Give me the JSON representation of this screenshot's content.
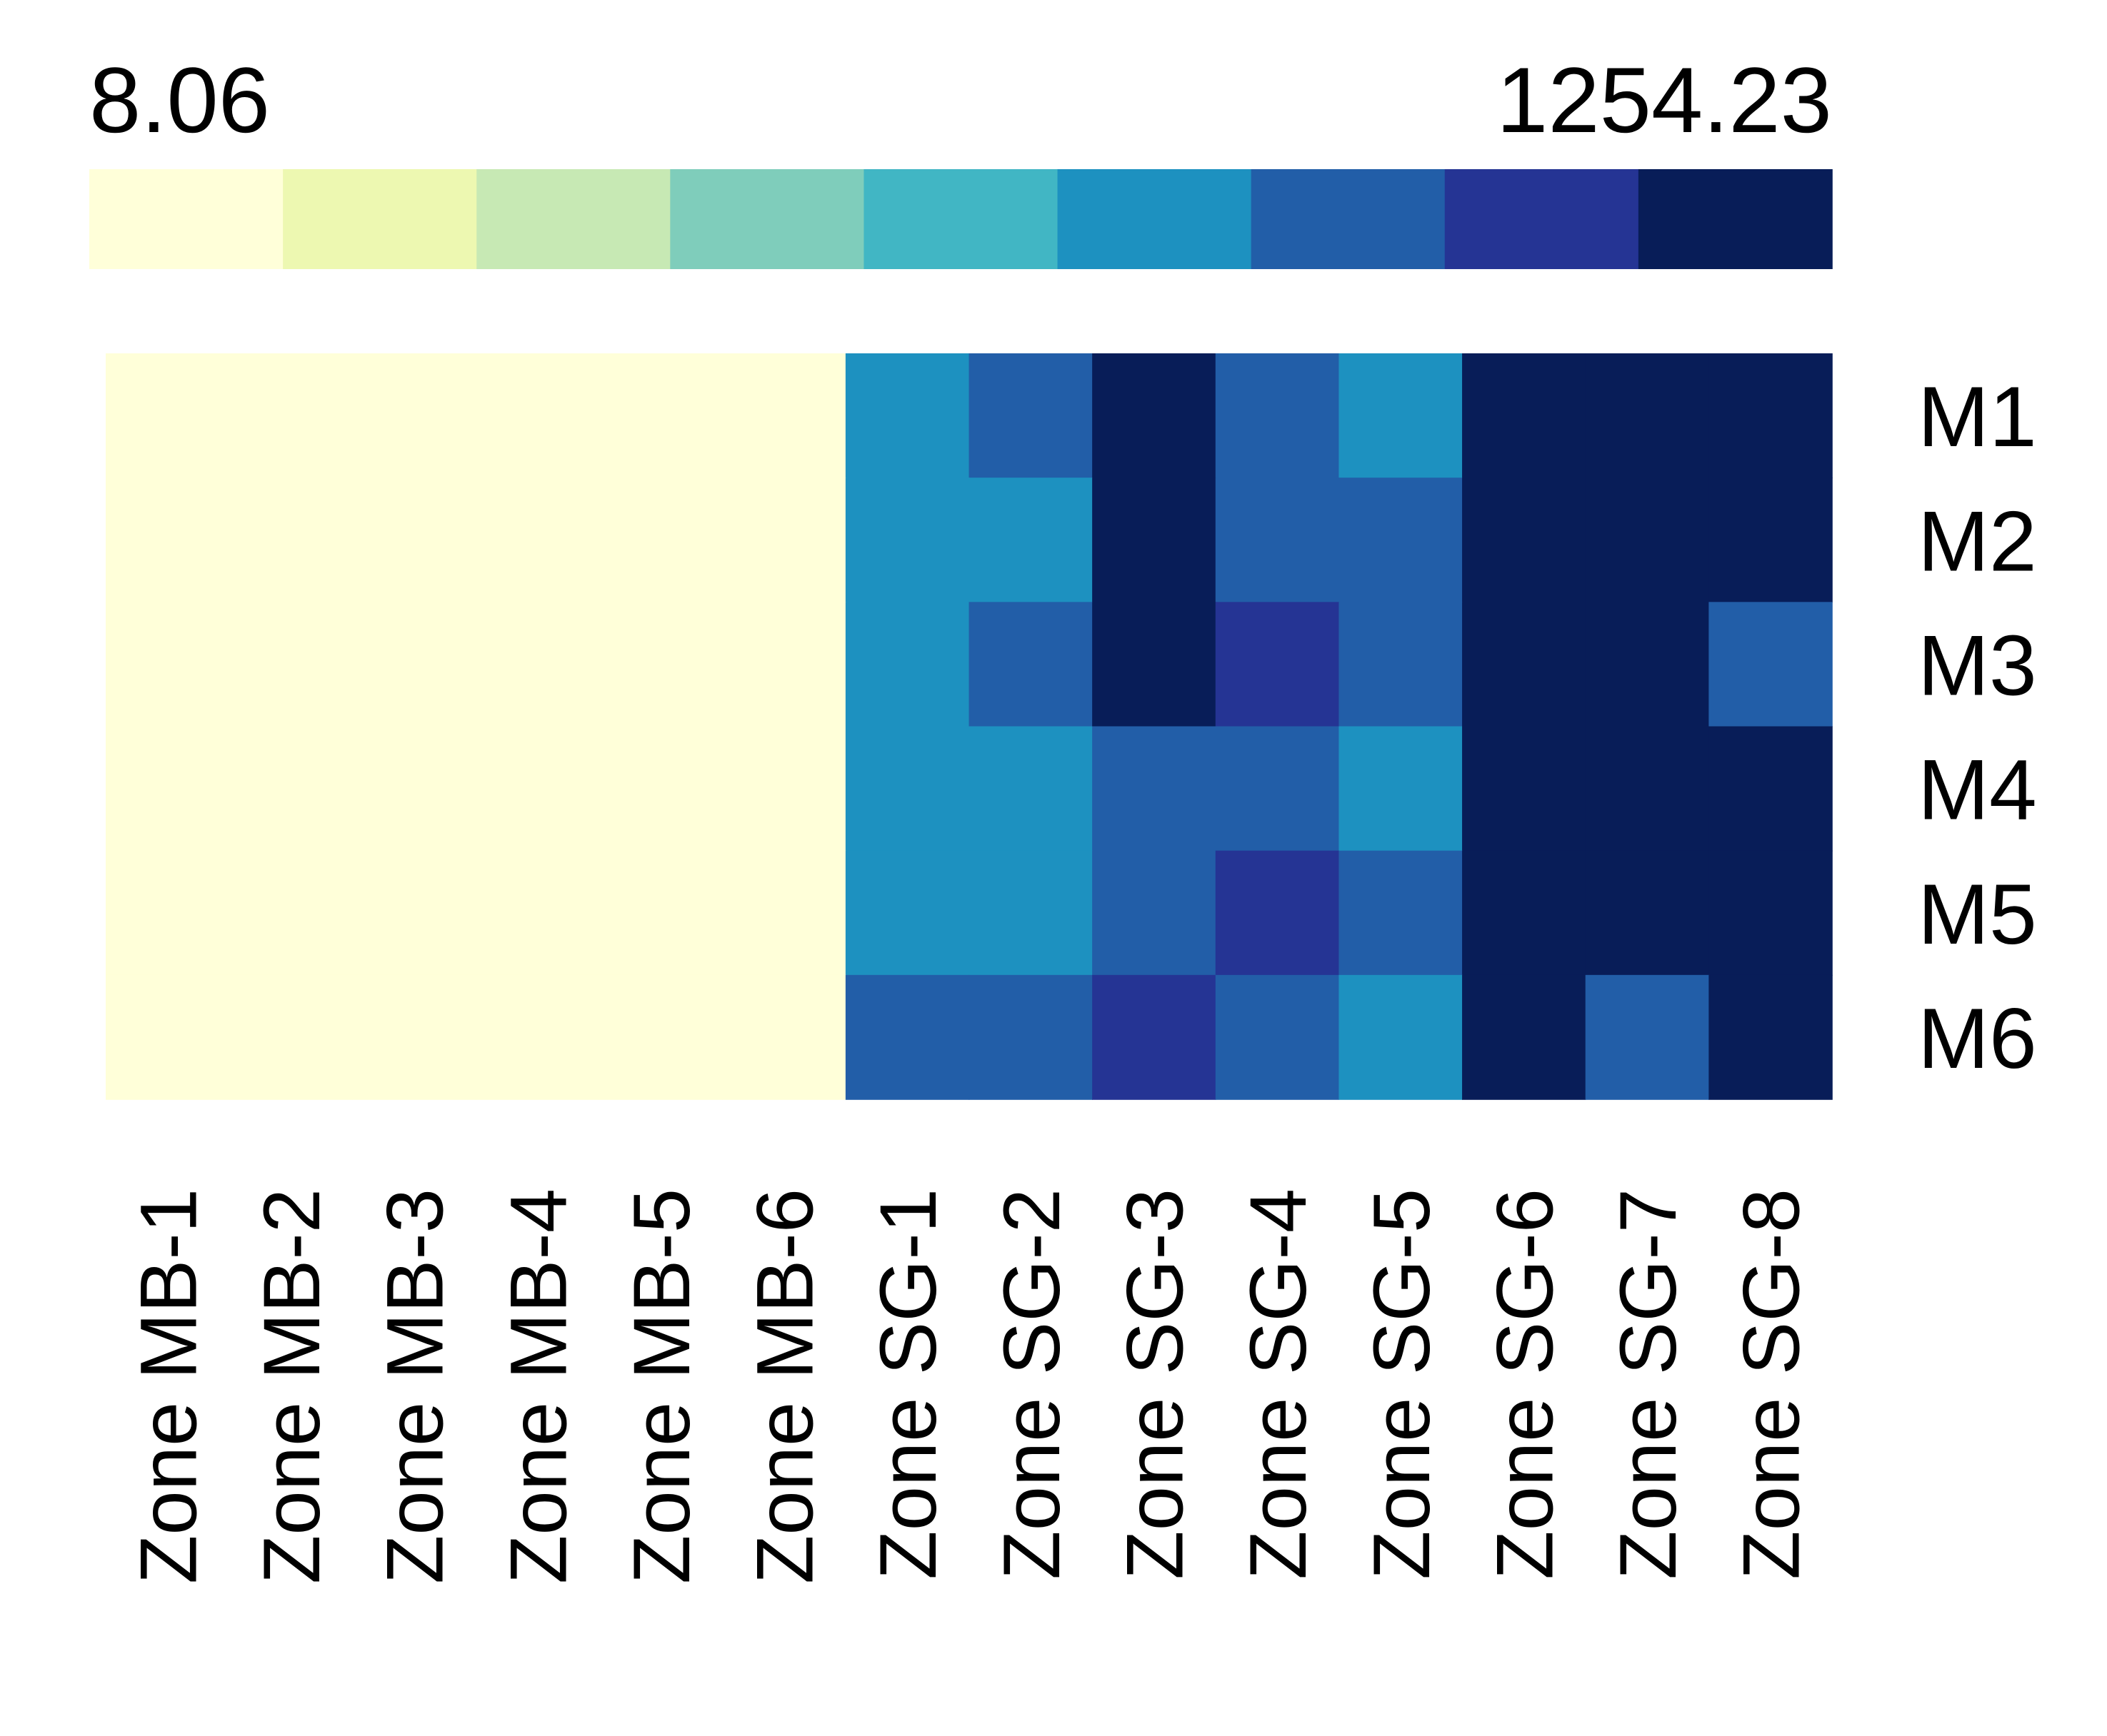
{
  "chart_data": {
    "type": "heatmap",
    "title": "",
    "xlabel": "",
    "ylabel": "",
    "colorbar": {
      "min_label": "8.06",
      "max_label": "1254.23",
      "min": 8.06,
      "max": 1254.23,
      "colors": [
        "#FFFFD9",
        "#EDF8B1",
        "#C7E9B4",
        "#7FCDBB",
        "#41B6C4",
        "#1D91C0",
        "#225EA8",
        "#253494",
        "#081D58"
      ]
    },
    "columns": [
      "Zone MB-1",
      "Zone MB-2",
      "Zone MB-3",
      "Zone MB-4",
      "Zone MB-5",
      "Zone MB-6",
      "Zone SG-1",
      "Zone SG-2",
      "Zone SG-3",
      "Zone SG-4",
      "Zone SG-5",
      "Zone SG-6",
      "Zone SG-7",
      "Zone SG-8"
    ],
    "rows": [
      "M1",
      "M2",
      "M3",
      "M4",
      "M5",
      "M6"
    ],
    "values": [
      [
        8.06,
        8.06,
        8.06,
        8.06,
        8.06,
        8.06,
        750,
        880,
        1254.23,
        1000,
        750,
        1254.23,
        1254.23,
        1254.23
      ],
      [
        8.06,
        8.06,
        8.06,
        8.06,
        8.06,
        8.06,
        750,
        750,
        1254.23,
        880,
        880,
        1254.23,
        1254.23,
        1254.23
      ],
      [
        8.06,
        8.06,
        8.06,
        8.06,
        8.06,
        8.06,
        750,
        880,
        1254.23,
        1040,
        880,
        1254.23,
        1254.23,
        1000
      ],
      [
        8.06,
        8.06,
        8.06,
        8.06,
        8.06,
        8.06,
        750,
        750,
        880,
        1000,
        750,
        1254.23,
        1254.23,
        1254.23
      ],
      [
        8.06,
        8.06,
        8.06,
        8.06,
        8.06,
        8.06,
        750,
        750,
        880,
        1040,
        880,
        1254.23,
        1254.23,
        1254.23
      ],
      [
        8.06,
        8.06,
        8.06,
        8.06,
        8.06,
        8.06,
        880,
        880,
        1100,
        880,
        750,
        1254.23,
        1000,
        1254.23
      ]
    ]
  }
}
